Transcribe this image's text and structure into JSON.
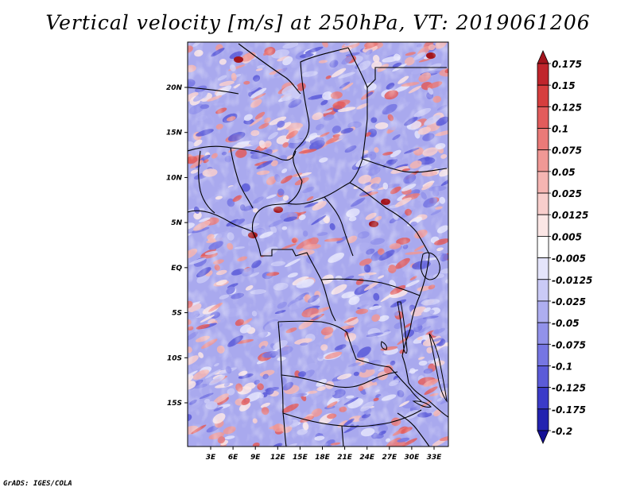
{
  "title": "Vertical velocity [m/s] at 250hPa, VT: 2019061206",
  "credit": "GrADS: IGES/COLA",
  "map": {
    "lat_labels": [
      "20N",
      "15N",
      "10N",
      "5N",
      "EQ",
      "5S",
      "10S",
      "15S"
    ],
    "lat_values": [
      20,
      15,
      10,
      5,
      0,
      -5,
      -10,
      -15
    ],
    "lon_labels": [
      "3E",
      "6E",
      "9E",
      "12E",
      "15E",
      "18E",
      "21E",
      "24E",
      "27E",
      "30E",
      "33E"
    ],
    "lon_values": [
      3,
      6,
      9,
      12,
      15,
      18,
      21,
      24,
      27,
      30,
      33
    ],
    "lon_range": [
      0,
      35
    ],
    "lat_range": [
      -20,
      25
    ]
  },
  "colorbar": {
    "labels": [
      "0.175",
      "0.15",
      "0.125",
      "0.1",
      "0.075",
      "0.05",
      "0.025",
      "0.0125",
      "0.005",
      "-0.005",
      "-0.0125",
      "-0.025",
      "-0.05",
      "-0.075",
      "-0.1",
      "-0.125",
      "-0.175",
      "-0.2"
    ],
    "colors": [
      "#a3151d",
      "#c0252c",
      "#d63e3e",
      "#e25c5c",
      "#ea7a78",
      "#f09895",
      "#f5b5b2",
      "#f8cecc",
      "#fbe6e5",
      "#ffffff",
      "#e4e4fb",
      "#cacaf6",
      "#aeaef0",
      "#9292ea",
      "#7676e2",
      "#5b5bd8",
      "#3b3bc8",
      "#2323b0",
      "#140f96"
    ]
  }
}
